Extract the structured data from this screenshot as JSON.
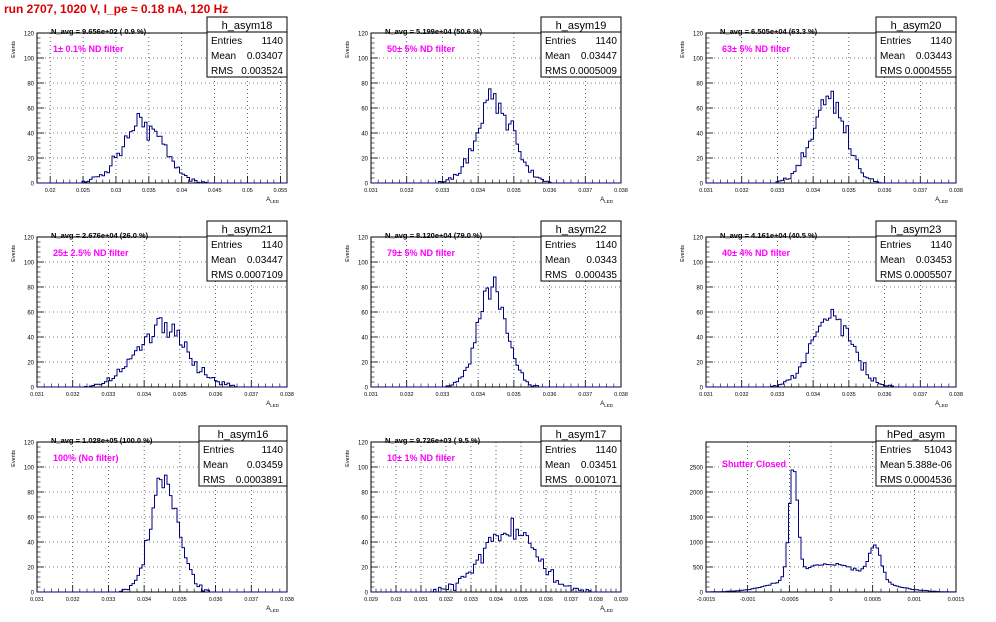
{
  "title": "run 2707,  1020 V, I_pe ≈ 0.18 nA, 120 Hz",
  "chart_data": [
    {
      "type": "histogram",
      "name": "h_asym18",
      "stats": {
        "entries": "1140",
        "mean": "0.03407",
        "rms": "0.003524"
      },
      "nlabel": "N_avg = 9.656e+02 ( 0.9 %)",
      "filter": "1± 0.1% ND filter",
      "ylabel": "Events",
      "xlabel": "A_LED",
      "xlim": [
        0.018,
        0.056
      ],
      "ylim": [
        0,
        120
      ],
      "yticks": [
        0,
        20,
        40,
        60,
        80,
        100,
        120
      ],
      "xticks": [
        0.02,
        0.025,
        0.03,
        0.035,
        0.04,
        0.045,
        0.05,
        0.055
      ],
      "xticklabels": [
        "0.02",
        "0.025",
        "0.03",
        "0.035",
        "0.04",
        "0.045",
        "0.05",
        "0.055"
      ],
      "peaks": [
        {
          "c": 0.0341,
          "s": 0.0032,
          "a": 48
        }
      ]
    },
    {
      "type": "histogram",
      "name": "h_asym19",
      "stats": {
        "entries": "1140",
        "mean": "0.03447",
        "rms": "0.0005009"
      },
      "nlabel": "N_avg = 5.199e+04 (50.6 %)",
      "filter": "50± 5% ND filter",
      "ylabel": "Events",
      "xlabel": "A_LED",
      "xlim": [
        0.031,
        0.038
      ],
      "ylim": [
        0,
        120
      ],
      "yticks": [
        0,
        20,
        40,
        60,
        80,
        100,
        120
      ],
      "xticks": [
        0.031,
        0.032,
        0.033,
        0.034,
        0.035,
        0.036,
        0.037,
        0.038
      ],
      "xticklabels": [
        "0.031",
        "0.032",
        "0.033",
        "0.034",
        "0.035",
        "0.036",
        "0.037",
        "0.038"
      ],
      "peaks": [
        {
          "c": 0.03447,
          "s": 0.0005,
          "a": 68
        }
      ]
    },
    {
      "type": "histogram",
      "name": "h_asym20",
      "stats": {
        "entries": "1140",
        "mean": "0.03443",
        "rms": "0.0004555"
      },
      "nlabel": "N_avg = 6.505e+04 (63.3 %)",
      "filter": "63± 5% ND filter",
      "ylabel": "Events",
      "xlabel": "A_LED",
      "xlim": [
        0.031,
        0.038
      ],
      "ylim": [
        0,
        120
      ],
      "yticks": [
        0,
        20,
        40,
        60,
        80,
        100,
        120
      ],
      "xticks": [
        0.031,
        0.032,
        0.033,
        0.034,
        0.035,
        0.036,
        0.037,
        0.038
      ],
      "xticklabels": [
        "0.031",
        "0.032",
        "0.033",
        "0.034",
        "0.035",
        "0.036",
        "0.037",
        "0.038"
      ],
      "peaks": [
        {
          "c": 0.03443,
          "s": 0.00046,
          "a": 70
        }
      ]
    },
    {
      "type": "histogram",
      "name": "h_asym21",
      "stats": {
        "entries": "1140",
        "mean": "0.03447",
        "rms": "0.0007109"
      },
      "nlabel": "N_avg = 2.676e+04 (26.0 %)",
      "filter": "25± 2.5% ND filter",
      "ylabel": "Events",
      "xlabel": "A_LED",
      "xlim": [
        0.031,
        0.038
      ],
      "ylim": [
        0,
        120
      ],
      "yticks": [
        0,
        20,
        40,
        60,
        80,
        100,
        120
      ],
      "xticks": [
        0.031,
        0.032,
        0.033,
        0.034,
        0.035,
        0.036,
        0.037,
        0.038
      ],
      "xticklabels": [
        "0.031",
        "0.032",
        "0.033",
        "0.034",
        "0.035",
        "0.036",
        "0.037",
        "0.038"
      ],
      "peaks": [
        {
          "c": 0.03447,
          "s": 0.00071,
          "a": 47
        }
      ]
    },
    {
      "type": "histogram",
      "name": "h_asym22",
      "stats": {
        "entries": "1140",
        "mean": "0.0343",
        "rms": "0.000435"
      },
      "nlabel": "N_avg = 8.120e+04 (79.0 %)",
      "filter": "79± 5% ND filter",
      "ylabel": "Events",
      "xlabel": "A_LED",
      "xlim": [
        0.031,
        0.038
      ],
      "ylim": [
        0,
        120
      ],
      "yticks": [
        0,
        20,
        40,
        60,
        80,
        100,
        120
      ],
      "xticks": [
        0.031,
        0.032,
        0.033,
        0.034,
        0.035,
        0.036,
        0.037,
        0.038
      ],
      "xticklabels": [
        "0.031",
        "0.032",
        "0.033",
        "0.034",
        "0.035",
        "0.036",
        "0.037",
        "0.038"
      ],
      "peaks": [
        {
          "c": 0.0344,
          "s": 0.0004,
          "a": 82
        }
      ]
    },
    {
      "type": "histogram",
      "name": "h_asym23",
      "stats": {
        "entries": "1140",
        "mean": "0.03453",
        "rms": "0.0005507"
      },
      "nlabel": "N_avg = 4.161e+04 (40.5 %)",
      "filter": "40± 4% ND filter",
      "ylabel": "Events",
      "xlabel": "A_LED",
      "xlim": [
        0.031,
        0.038
      ],
      "ylim": [
        0,
        120
      ],
      "yticks": [
        0,
        20,
        40,
        60,
        80,
        100,
        120
      ],
      "xticks": [
        0.031,
        0.032,
        0.033,
        0.034,
        0.035,
        0.036,
        0.037,
        0.038
      ],
      "xticklabels": [
        "0.031",
        "0.032",
        "0.033",
        "0.034",
        "0.035",
        "0.036",
        "0.037",
        "0.038"
      ],
      "peaks": [
        {
          "c": 0.03453,
          "s": 0.00055,
          "a": 58
        }
      ]
    },
    {
      "type": "histogram",
      "name": "h_asym16",
      "stats": {
        "entries": "1140",
        "mean": "0.03459",
        "rms": "0.0003891"
      },
      "nlabel": "N_avg = 1.028e+05 (100.0 %)",
      "filter": "100% (No filter)",
      "ylabel": "Events",
      "xlabel": "A_LED",
      "xlim": [
        0.031,
        0.038
      ],
      "ylim": [
        0,
        120
      ],
      "yticks": [
        0,
        20,
        40,
        60,
        80,
        100,
        120
      ],
      "xticks": [
        0.031,
        0.032,
        0.033,
        0.034,
        0.035,
        0.036,
        0.037,
        0.038
      ],
      "xticklabels": [
        "0.031",
        "0.032",
        "0.033",
        "0.034",
        "0.035",
        "0.036",
        "0.037",
        "0.038"
      ],
      "peaks": [
        {
          "c": 0.03459,
          "s": 0.00039,
          "a": 88
        }
      ]
    },
    {
      "type": "histogram",
      "name": "h_asym17",
      "stats": {
        "entries": "1140",
        "mean": "0.03451",
        "rms": "0.001071"
      },
      "nlabel": "N_avg = 9.726e+03 ( 9.5 %)",
      "filter": "10± 1% ND filter",
      "ylabel": "Events",
      "xlabel": "A_LED",
      "xlim": [
        0.029,
        0.039
      ],
      "ylim": [
        0,
        120
      ],
      "yticks": [
        0,
        20,
        40,
        60,
        80,
        100,
        120
      ],
      "xticks": [
        0.029,
        0.03,
        0.031,
        0.032,
        0.033,
        0.034,
        0.035,
        0.036,
        0.037,
        0.038,
        0.039
      ],
      "xticklabels": [
        "0.029",
        "0.03",
        "0.031",
        "0.032",
        "0.033",
        "0.034",
        "0.035",
        "0.036",
        "0.037",
        "0.038",
        "0.039"
      ],
      "peaks": [
        {
          "c": 0.03451,
          "s": 0.00107,
          "a": 50
        }
      ]
    },
    {
      "type": "histogram",
      "name": "hPed_asym",
      "stats": {
        "entries": "51043",
        "mean": "5.388e-06",
        "rms": "0.0004536"
      },
      "nlabel": "",
      "filter": "Shutter Closed",
      "ylabel": "",
      "xlabel": "",
      "xlim": [
        -0.0015,
        0.0015
      ],
      "ylim": [
        0,
        3000
      ],
      "yticks": [
        0,
        500,
        1000,
        1500,
        2000,
        2500
      ],
      "xticks": [
        -0.0015,
        -0.001,
        -0.0005,
        0,
        0.0005,
        0.001,
        0.0015
      ],
      "xticklabels": [
        "-0.0015",
        "-0.001",
        "-0.0005",
        "0",
        "0.0005",
        "0.001",
        "0.0015"
      ],
      "peaks": [
        {
          "c": -0.00045,
          "s": 5e-05,
          "a": 2200
        },
        {
          "c": 0.00053,
          "s": 7e-05,
          "a": 650
        },
        {
          "c": 0.0,
          "s": 0.00045,
          "a": 560
        }
      ]
    }
  ]
}
